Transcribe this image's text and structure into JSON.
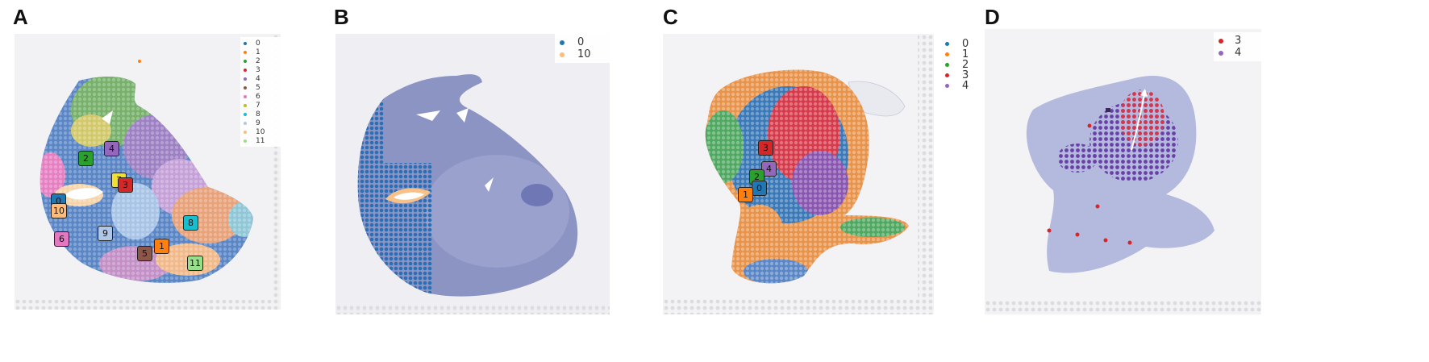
{
  "panels": [
    {
      "letter": "A",
      "legend": [
        {
          "label": "0",
          "color": "#1f77b4"
        },
        {
          "label": "1",
          "color": "#ff7f0e"
        },
        {
          "label": "2",
          "color": "#2ca02c"
        },
        {
          "label": "3",
          "color": "#d62728"
        },
        {
          "label": "4",
          "color": "#9467bd"
        },
        {
          "label": "5",
          "color": "#8c564b"
        },
        {
          "label": "6",
          "color": "#e377c2"
        },
        {
          "label": "7",
          "color": "#bcbd22"
        },
        {
          "label": "8",
          "color": "#17becf"
        },
        {
          "label": "9",
          "color": "#aec7e8"
        },
        {
          "label": "10",
          "color": "#ffbb78"
        },
        {
          "label": "11",
          "color": "#98df8a"
        }
      ],
      "cluster_labels": [
        "2",
        "4",
        "7",
        "3",
        "0",
        "10",
        "6",
        "9",
        "5",
        "1",
        "8",
        "11"
      ]
    },
    {
      "letter": "B",
      "legend": [
        {
          "label": "0",
          "color": "#1f77b4"
        },
        {
          "label": "10",
          "color": "#ffbb78"
        }
      ]
    },
    {
      "letter": "C",
      "legend": [
        {
          "label": "0",
          "color": "#1f77b4"
        },
        {
          "label": "1",
          "color": "#ff7f0e"
        },
        {
          "label": "2",
          "color": "#2ca02c"
        },
        {
          "label": "3",
          "color": "#d62728"
        },
        {
          "label": "4",
          "color": "#9467bd"
        }
      ],
      "cluster_labels": [
        "3",
        "4",
        "2",
        "0",
        "1"
      ]
    },
    {
      "letter": "D",
      "legend": [
        {
          "label": "3",
          "color": "#d62728"
        },
        {
          "label": "4",
          "color": "#9467bd"
        }
      ]
    }
  ]
}
